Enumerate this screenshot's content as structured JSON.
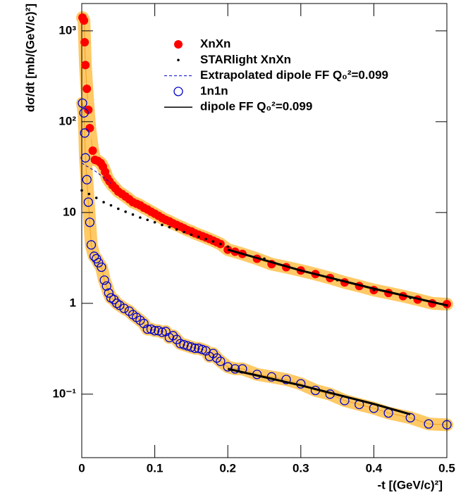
{
  "chart_data": {
    "type": "scatter",
    "xlabel": "-t [(GeV/c)²]",
    "ylabel": "dσ/dt [mb/(GeV/c)²]",
    "xlim": [
      0,
      0.5
    ],
    "xticks": [
      0,
      0.1,
      0.2,
      0.3,
      0.4,
      0.5
    ],
    "ylim": [
      0.02,
      2000
    ],
    "ylog": true,
    "yticks": [
      {
        "value": 0.1,
        "label": "10⁻¹"
      },
      1,
      10,
      {
        "value": 100,
        "label": "10²"
      },
      {
        "value": 1000,
        "label": "10³"
      }
    ],
    "series": [
      {
        "name": "XnXn",
        "style": "filled-circle",
        "color": "#ff0000",
        "band_color": "#ffc966",
        "x": [
          0.001,
          0.003,
          0.004,
          0.005,
          0.007,
          0.009,
          0.011,
          0.015,
          0.018,
          0.022,
          0.026,
          0.029,
          0.032,
          0.035,
          0.038,
          0.042,
          0.046,
          0.05,
          0.055,
          0.06,
          0.065,
          0.07,
          0.075,
          0.08,
          0.085,
          0.09,
          0.095,
          0.1,
          0.105,
          0.11,
          0.115,
          0.12,
          0.125,
          0.13,
          0.135,
          0.14,
          0.145,
          0.15,
          0.155,
          0.16,
          0.165,
          0.17,
          0.175,
          0.18,
          0.185,
          0.19,
          0.2,
          0.21,
          0.22,
          0.24,
          0.26,
          0.28,
          0.3,
          0.32,
          0.34,
          0.36,
          0.38,
          0.4,
          0.42,
          0.44,
          0.46,
          0.48,
          0.5
        ],
        "values": [
          1400,
          1300,
          750,
          420,
          230,
          135,
          85,
          48,
          38,
          37,
          35,
          32,
          28,
          24,
          22,
          20,
          18.5,
          17,
          16,
          15,
          14,
          13,
          12.5,
          12,
          11.3,
          10.8,
          10.2,
          9.7,
          9.2,
          8.7,
          8.3,
          8.0,
          7.6,
          7.3,
          7.0,
          6.7,
          6.4,
          6.2,
          5.9,
          5.7,
          5.5,
          5.3,
          5.1,
          4.9,
          4.7,
          4.5,
          3.9,
          3.7,
          3.5,
          3.1,
          2.7,
          2.5,
          2.3,
          2.1,
          1.9,
          1.7,
          1.55,
          1.4,
          1.3,
          1.2,
          1.1,
          1.0,
          0.98
        ]
      },
      {
        "name": "STARlight XnXn",
        "style": "dot",
        "color": "#000000",
        "x": [
          0,
          0.01,
          0.02,
          0.03,
          0.04,
          0.05,
          0.06,
          0.07,
          0.08,
          0.09,
          0.1,
          0.11,
          0.12,
          0.13,
          0.14,
          0.15,
          0.16,
          0.17,
          0.18,
          0.19,
          0.2,
          0.25,
          0.3,
          0.35,
          0.4,
          0.45,
          0.5
        ],
        "values": [
          17.5,
          16,
          14.5,
          13,
          12,
          11,
          10.2,
          9.5,
          8.8,
          8.3,
          7.8,
          7.3,
          6.9,
          6.5,
          6.1,
          5.7,
          5.4,
          5.1,
          4.8,
          4.5,
          4.2,
          3.1,
          2.3,
          1.8,
          1.4,
          1.15,
          0.95
        ]
      },
      {
        "name": "Extrapolated dipole FF Q₀²=0.099",
        "style": "dashed",
        "color": "#0000cc",
        "x": [
          0,
          0.02,
          0.04
        ],
        "values": [
          35,
          28,
          21
        ]
      },
      {
        "name": "1n1n",
        "style": "open-circle",
        "color": "#0000cc",
        "band_color": "#ffc966",
        "x": [
          0.001,
          0.003,
          0.004,
          0.005,
          0.007,
          0.009,
          0.011,
          0.013,
          0.017,
          0.02,
          0.023,
          0.027,
          0.031,
          0.034,
          0.037,
          0.04,
          0.044,
          0.048,
          0.052,
          0.058,
          0.065,
          0.07,
          0.075,
          0.08,
          0.085,
          0.09,
          0.095,
          0.1,
          0.105,
          0.11,
          0.115,
          0.12,
          0.125,
          0.13,
          0.135,
          0.14,
          0.145,
          0.15,
          0.155,
          0.16,
          0.165,
          0.17,
          0.175,
          0.18,
          0.185,
          0.19,
          0.2,
          0.21,
          0.22,
          0.24,
          0.26,
          0.28,
          0.3,
          0.32,
          0.34,
          0.36,
          0.38,
          0.4,
          0.42,
          0.45,
          0.475,
          0.5
        ],
        "values": [
          160,
          125,
          75,
          40,
          23,
          13,
          7.8,
          4.4,
          3.3,
          3.1,
          2.8,
          2.5,
          1.8,
          1.55,
          1.3,
          1.15,
          1.1,
          1.0,
          0.95,
          0.88,
          0.82,
          0.75,
          0.7,
          0.65,
          0.6,
          0.52,
          0.52,
          0.5,
          0.5,
          0.48,
          0.49,
          0.42,
          0.44,
          0.4,
          0.36,
          0.35,
          0.34,
          0.33,
          0.32,
          0.32,
          0.31,
          0.3,
          0.26,
          0.28,
          0.25,
          0.23,
          0.2,
          0.19,
          0.19,
          0.165,
          0.155,
          0.145,
          0.13,
          0.11,
          0.1,
          0.085,
          0.077,
          0.07,
          0.062,
          0.055,
          0.047,
          0.046
        ]
      },
      {
        "name": "dipole FF  Q₀²=0.099",
        "style": "line",
        "color": "#000000",
        "x": [
          0.2,
          0.3,
          0.4,
          0.5,
          null,
          0.2,
          0.3,
          0.4,
          0.45
        ],
        "values": [
          3.9,
          2.3,
          1.45,
          0.95,
          null,
          0.19,
          0.125,
          0.078,
          0.06
        ]
      }
    ]
  }
}
